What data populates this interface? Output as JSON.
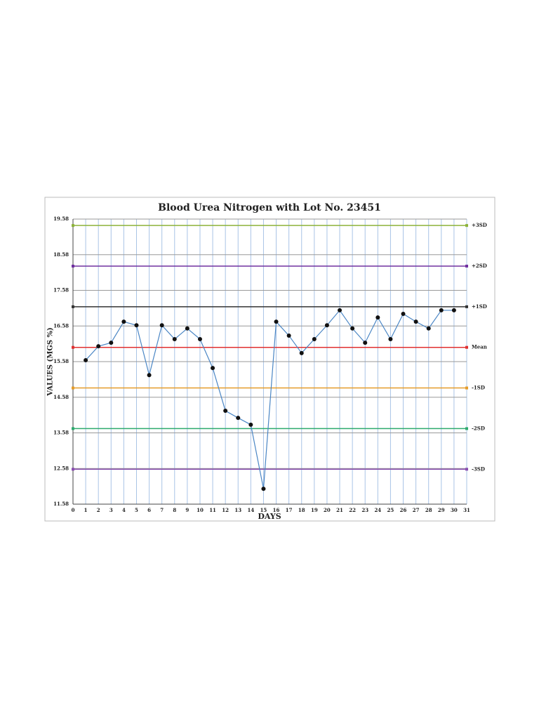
{
  "chart_data": {
    "type": "line",
    "title": "Blood Urea Nitrogen with Lot No. 23451",
    "x_label": "DAYS",
    "y_label": "VALUES (MGS %)",
    "xlim": [
      0,
      31
    ],
    "xticks": [
      0,
      1,
      2,
      3,
      4,
      5,
      6,
      7,
      8,
      9,
      10,
      11,
      12,
      13,
      14,
      15,
      16,
      17,
      18,
      19,
      20,
      21,
      22,
      23,
      24,
      25,
      26,
      27,
      28,
      29,
      30,
      31
    ],
    "ylim": [
      11.58,
      19.58
    ],
    "yticks": [
      11.58,
      12.58,
      13.58,
      14.58,
      15.58,
      16.58,
      17.58,
      18.58,
      19.58
    ],
    "grid": true,
    "series": [
      {
        "color": "#4a86c5",
        "x": [
          1,
          2,
          3,
          4,
          5,
          6,
          7,
          8,
          9,
          10,
          11,
          12,
          13,
          14,
          15,
          16,
          17,
          18,
          19,
          20,
          21,
          22,
          23,
          24,
          25,
          26,
          27,
          28,
          29,
          30
        ],
        "values": [
          15.62,
          16.01,
          16.11,
          16.7,
          16.6,
          15.2,
          16.6,
          16.21,
          16.51,
          16.21,
          15.4,
          14.2,
          14.0,
          13.81,
          12.01,
          16.7,
          16.31,
          15.82,
          16.21,
          16.6,
          17.02,
          16.51,
          16.11,
          16.82,
          16.21,
          16.92,
          16.7,
          16.51,
          17.02,
          17.02
        ]
      }
    ],
    "reference_lines": [
      {
        "name": "+3SD",
        "value": 19.4,
        "color": "#8db33a"
      },
      {
        "name": "+2SD",
        "value": 18.26,
        "color": "#7030a0"
      },
      {
        "name": "+1SD",
        "value": 17.12,
        "color": "#333333"
      },
      {
        "name": "Mean",
        "value": 15.98,
        "color": "#e03030"
      },
      {
        "name": "-1SD",
        "value": 14.84,
        "color": "#e59c2a"
      },
      {
        "name": "-2SD",
        "value": 13.7,
        "color": "#2eaa6e"
      },
      {
        "name": "-3SD",
        "value": 12.56,
        "color": "#8a4fb0"
      }
    ]
  }
}
